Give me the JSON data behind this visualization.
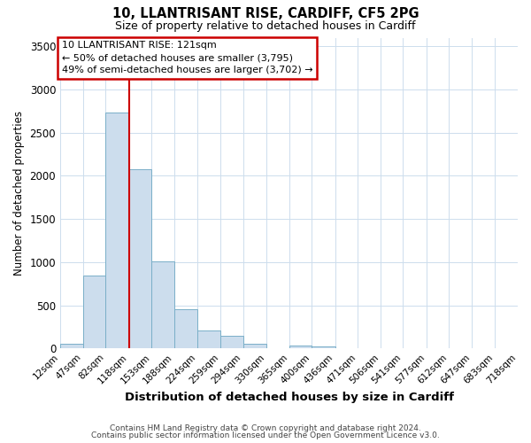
{
  "title1": "10, LLANTRISANT RISE, CARDIFF, CF5 2PG",
  "title2": "Size of property relative to detached houses in Cardiff",
  "xlabel": "Distribution of detached houses by size in Cardiff",
  "ylabel": "Number of detached properties",
  "footnote1": "Contains HM Land Registry data © Crown copyright and database right 2024.",
  "footnote2": "Contains public sector information licensed under the Open Government Licence v3.0.",
  "bin_edges": [
    12,
    47,
    82,
    118,
    153,
    188,
    224,
    259,
    294,
    330,
    365,
    400,
    436,
    471,
    506,
    541,
    577,
    612,
    647,
    683,
    718
  ],
  "bar_heights": [
    55,
    845,
    2730,
    2075,
    1010,
    455,
    210,
    145,
    55,
    0,
    30,
    20,
    0,
    0,
    0,
    0,
    0,
    0,
    0,
    0
  ],
  "bar_color": "#ccdded",
  "bar_edge_color": "#7aafc8",
  "tick_labels": [
    "12sqm",
    "47sqm",
    "82sqm",
    "118sqm",
    "153sqm",
    "188sqm",
    "224sqm",
    "259sqm",
    "294sqm",
    "330sqm",
    "365sqm",
    "400sqm",
    "436sqm",
    "471sqm",
    "506sqm",
    "541sqm",
    "577sqm",
    "612sqm",
    "647sqm",
    "683sqm",
    "718sqm"
  ],
  "vline_x": 118,
  "vline_color": "#cc0000",
  "ylim": [
    0,
    3600
  ],
  "yticks": [
    0,
    500,
    1000,
    1500,
    2000,
    2500,
    3000,
    3500
  ],
  "annotation_title": "10 LLANTRISANT RISE: 121sqm",
  "annotation_line1": "← 50% of detached houses are smaller (3,795)",
  "annotation_line2": "49% of semi-detached houses are larger (3,702) →",
  "box_edge_color": "#cc0000",
  "background_color": "#ffffff",
  "grid_color": "#cddded"
}
